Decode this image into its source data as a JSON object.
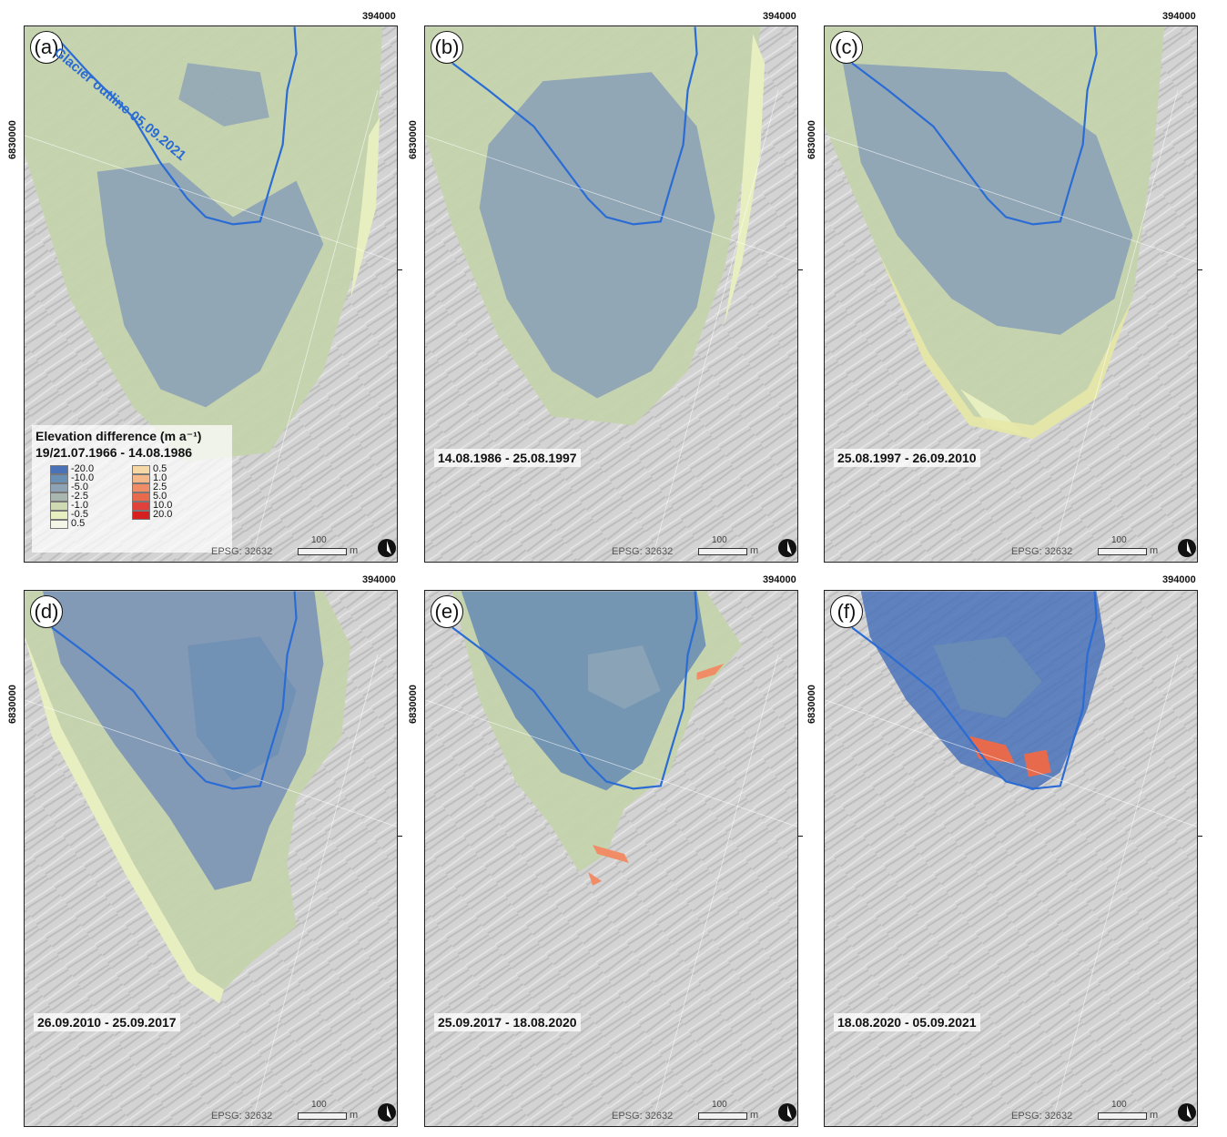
{
  "coords": {
    "easting": "394000",
    "northing": "6830000"
  },
  "epsg_label": "EPSG: 32632",
  "scale": {
    "value": "100",
    "unit": "m"
  },
  "outline_label": "Glacier outline 05.09.2021",
  "legend": {
    "title": "Elevation difference (m a⁻¹)",
    "neg_values": [
      "-20.0",
      "-10.0",
      "-5.0",
      "-2.5",
      "-1.0",
      "-0.5",
      "0.5"
    ],
    "pos_values": [
      "0.5",
      "1.0",
      "2.5",
      "5.0",
      "10.0",
      "20.0"
    ],
    "neg_colors": [
      "#4a72b8",
      "#6a8fb4",
      "#8ea4b6",
      "#a9b7b0",
      "#cddab2",
      "#e7efc0",
      "#f3f5e7"
    ],
    "pos_colors": [
      "#f6d7a6",
      "#f4b88a",
      "#f08d67",
      "#e86a4c",
      "#e2403a",
      "#d62020"
    ]
  },
  "panels": [
    {
      "letter": "(a)",
      "period": "19/21.07.1966 - 14.08.1986"
    },
    {
      "letter": "(b)",
      "period": "14.08.1986 - 25.08.1997"
    },
    {
      "letter": "(c)",
      "period": "25.08.1997 - 26.09.2010"
    },
    {
      "letter": "(d)",
      "period": "26.09.2010 - 25.09.2017"
    },
    {
      "letter": "(e)",
      "period": "25.09.2017 - 18.08.2020"
    },
    {
      "letter": "(f)",
      "period": "18.08.2020 - 05.09.2021"
    }
  ]
}
